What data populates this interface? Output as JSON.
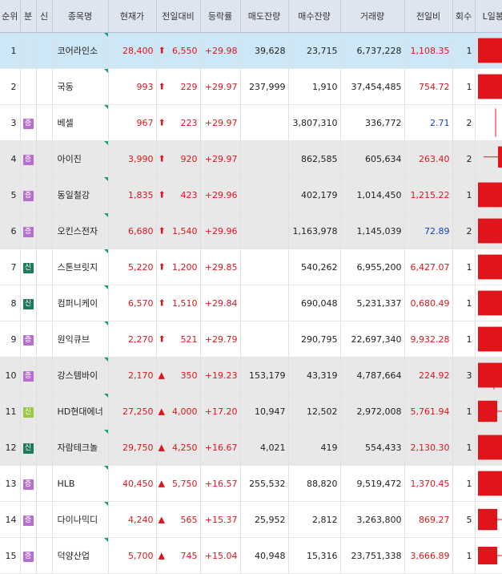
{
  "headers": [
    "순위",
    "분",
    "신",
    "종목명",
    "현재가",
    "전일대비",
    "등락률",
    "매도잔량",
    "매수잔량",
    "거래량",
    "전일비",
    "회수",
    "L일봉H"
  ],
  "colors": {
    "up": "#e0151c",
    "down": "#1742c4",
    "badge_jeung": "#b66fd0",
    "badge_sin": "#1d7a5e",
    "badge_sin_light": "#9ac94a",
    "selected_row": "#cde7f6",
    "gray_row": "#e8e8e8",
    "header_bg": "#dfe5ef"
  },
  "rows": [
    {
      "rank": "1",
      "badge": "",
      "name": "코어라인소",
      "price": "28,400",
      "arrow": "⬆",
      "change": "6,550",
      "rate": "+29.98",
      "ask": "39,628",
      "bid": "23,715",
      "volume": "6,737,228",
      "ratio": "1,108.35",
      "ratio_color": "red",
      "count": "1",
      "row_style": "sel",
      "candle": {
        "o": 0.15,
        "c": 0.85,
        "lo": 0.15,
        "hi": 0.85,
        "body_width_level": "full"
      }
    },
    {
      "rank": "2",
      "badge": "",
      "name": "국동",
      "price": "993",
      "arrow": "⬆",
      "change": "229",
      "rate": "+29.97",
      "ask": "237,999",
      "bid": "1,910",
      "volume": "37,454,485",
      "ratio": "754.72",
      "ratio_color": "red",
      "count": "1",
      "row_style": "",
      "candle": {
        "o": 0.15,
        "c": 0.85,
        "lo": 0.15,
        "hi": 0.85,
        "body_width_level": "full"
      }
    },
    {
      "rank": "3",
      "badge": "증",
      "badge_color": "jeung",
      "name": "베셀",
      "price": "967",
      "arrow": "⬆",
      "change": "223",
      "rate": "+29.97",
      "ask": "",
      "bid": "3,807,310",
      "volume": "336,772",
      "ratio": "2.71",
      "ratio_color": "blue",
      "count": "2",
      "row_style": "",
      "candle": {
        "o": 0.5,
        "c": 0.5,
        "lo": 0.1,
        "hi": 0.9,
        "body_width_level": "line"
      }
    },
    {
      "rank": "4",
      "badge": "증",
      "badge_color": "jeung",
      "name": "아이진",
      "price": "3,990",
      "arrow": "⬆",
      "change": "920",
      "rate": "+29.97",
      "ask": "",
      "bid": "862,585",
      "volume": "605,634",
      "ratio": "263.40",
      "ratio_color": "red",
      "count": "2",
      "row_style": "gray",
      "candle": {
        "o": 0.25,
        "c": 0.85,
        "lo": 0.25,
        "hi": 0.85,
        "body_width_level": "narrow-right"
      }
    },
    {
      "rank": "5",
      "badge": "증",
      "badge_color": "jeung",
      "name": "동일철강",
      "price": "1,835",
      "arrow": "⬆",
      "change": "423",
      "rate": "+29.96",
      "ask": "",
      "bid": "402,179",
      "volume": "1,014,450",
      "ratio": "1,215.22",
      "ratio_color": "red",
      "count": "1",
      "row_style": "gray",
      "candle": {
        "o": 0.15,
        "c": 0.85,
        "lo": 0.15,
        "hi": 0.85,
        "body_width_level": "full"
      }
    },
    {
      "rank": "6",
      "badge": "증",
      "badge_color": "jeung",
      "name": "오킨스전자",
      "price": "6,680",
      "arrow": "⬆",
      "change": "1,540",
      "rate": "+29.96",
      "ask": "",
      "bid": "1,163,978",
      "volume": "1,145,039",
      "ratio": "72.89",
      "ratio_color": "blue",
      "count": "2",
      "row_style": "gray",
      "candle": {
        "o": 0.15,
        "c": 0.85,
        "lo": 0.15,
        "hi": 0.85,
        "body_width_level": "full"
      }
    },
    {
      "rank": "7",
      "badge": "신",
      "badge_color": "sin",
      "name": "스톤브릿지",
      "price": "5,220",
      "arrow": "⬆",
      "change": "1,200",
      "rate": "+29.85",
      "ask": "",
      "bid": "540,262",
      "volume": "6,955,200",
      "ratio": "6,427.07",
      "ratio_color": "red",
      "count": "1",
      "row_style": "",
      "candle": {
        "o": 0.15,
        "c": 0.85,
        "lo": 0.15,
        "hi": 0.85,
        "body_width_level": "full"
      }
    },
    {
      "rank": "8",
      "badge": "신",
      "badge_color": "sin",
      "name": "컴퍼니케이",
      "price": "6,570",
      "arrow": "⬆",
      "change": "1,510",
      "rate": "+29.84",
      "ask": "",
      "bid": "690,048",
      "volume": "5,231,337",
      "ratio": "0,680.49",
      "ratio_color": "red",
      "count": "1",
      "row_style": "",
      "candle": {
        "o": 0.15,
        "c": 0.85,
        "lo": 0.15,
        "hi": 0.85,
        "body_width_level": "full"
      }
    },
    {
      "rank": "9",
      "badge": "증",
      "badge_color": "jeung",
      "name": "원익큐브",
      "price": "2,270",
      "arrow": "⬆",
      "change": "521",
      "rate": "+29.79",
      "ask": "",
      "bid": "290,795",
      "volume": "22,697,340",
      "ratio": "9,932.28",
      "ratio_color": "red",
      "count": "1",
      "row_style": "",
      "candle": {
        "o": 0.15,
        "c": 0.85,
        "lo": 0.15,
        "hi": 0.85,
        "body_width_level": "full"
      }
    },
    {
      "rank": "10",
      "badge": "증",
      "badge_color": "jeung",
      "name": "강스템바이",
      "price": "2,170",
      "arrow": "▲",
      "change": "350",
      "rate": "+19.23",
      "ask": "153,179",
      "bid": "43,319",
      "volume": "4,787,664",
      "ratio": "224.92",
      "ratio_color": "red",
      "count": "3",
      "row_style": "gray",
      "candle": {
        "o": 0.15,
        "c": 0.85,
        "lo": 0.1,
        "hi": 0.85,
        "body_width_level": "wide-wick"
      }
    },
    {
      "rank": "11",
      "badge": "신",
      "badge_color": "sin_light",
      "name": "HD현대에너",
      "price": "27,250",
      "arrow": "▲",
      "change": "4,000",
      "rate": "+17.20",
      "ask": "10,947",
      "bid": "12,502",
      "volume": "2,972,008",
      "ratio": "5,761.94",
      "ratio_color": "red",
      "count": "1",
      "row_style": "gray",
      "candle": {
        "o": 0.2,
        "c": 0.8,
        "lo": 0.2,
        "hi": 0.8,
        "body_width_level": "half-wick"
      }
    },
    {
      "rank": "12",
      "badge": "신",
      "badge_color": "sin",
      "name": "자람테크놀",
      "price": "29,750",
      "arrow": "▲",
      "change": "4,250",
      "rate": "+16.67",
      "ask": "4,021",
      "bid": "419",
      "volume": "554,433",
      "ratio": "2,130.30",
      "ratio_color": "red",
      "count": "1",
      "row_style": "gray",
      "candle": {
        "o": 0.15,
        "c": 0.85,
        "lo": 0.15,
        "hi": 0.85,
        "body_width_level": "medium"
      }
    },
    {
      "rank": "13",
      "badge": "증",
      "badge_color": "jeung",
      "name": "HLB",
      "price": "40,450",
      "arrow": "▲",
      "change": "5,750",
      "rate": "+16.57",
      "ask": "255,532",
      "bid": "88,820",
      "volume": "9,519,472",
      "ratio": "1,370.45",
      "ratio_color": "red",
      "count": "1",
      "row_style": "",
      "candle": {
        "o": 0.15,
        "c": 0.85,
        "lo": 0.15,
        "hi": 0.85,
        "body_width_level": "wide-wick"
      }
    },
    {
      "rank": "14",
      "badge": "증",
      "badge_color": "jeung",
      "name": "다이나믹디",
      "price": "4,240",
      "arrow": "▲",
      "change": "565",
      "rate": "+15.37",
      "ask": "25,952",
      "bid": "2,812",
      "volume": "3,263,800",
      "ratio": "869.27",
      "ratio_color": "red",
      "count": "5",
      "row_style": "",
      "candle": {
        "o": 0.2,
        "c": 0.8,
        "lo": 0.2,
        "hi": 0.8,
        "body_width_level": "medium-wick"
      }
    },
    {
      "rank": "15",
      "badge": "증",
      "badge_color": "jeung",
      "name": "덕양산업",
      "price": "5,700",
      "arrow": "▲",
      "change": "745",
      "rate": "+15.04",
      "ask": "40,948",
      "bid": "15,316",
      "volume": "23,751,338",
      "ratio": "3,666.89",
      "ratio_color": "red",
      "count": "1",
      "row_style": "",
      "candle": {
        "o": 0.25,
        "c": 0.75,
        "lo": 0.25,
        "hi": 0.75,
        "body_width_level": "half-wick"
      }
    }
  ]
}
